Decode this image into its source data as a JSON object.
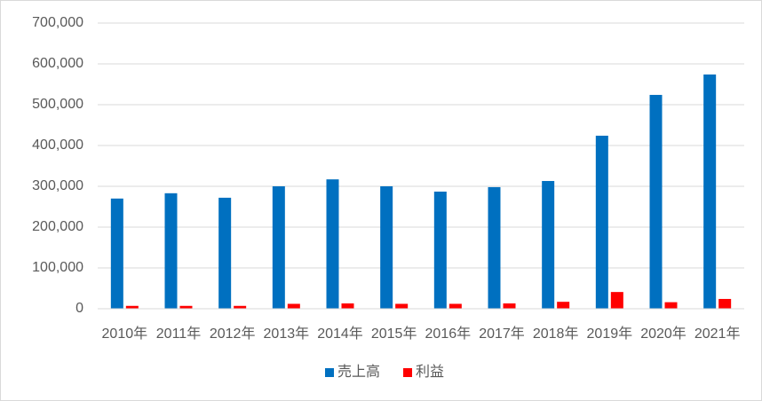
{
  "chart_data": {
    "type": "bar",
    "categories": [
      "2010年",
      "2011年",
      "2012年",
      "2013年",
      "2014年",
      "2015年",
      "2016年",
      "2017年",
      "2018年",
      "2019年",
      "2020年",
      "2021年"
    ],
    "series": [
      {
        "name": "売上高",
        "color": "#0070c0",
        "values": [
          270000,
          283000,
          272000,
          300000,
          317000,
          300000,
          287000,
          298000,
          313000,
          424000,
          524000,
          574000
        ]
      },
      {
        "name": "利益",
        "color": "#ff0000",
        "values": [
          7000,
          7000,
          7000,
          12000,
          13000,
          12000,
          12000,
          13000,
          17000,
          41000,
          16000,
          24000
        ]
      }
    ],
    "ylim": [
      0,
      700000
    ],
    "yticks": [
      0,
      {
        "value": 100000,
        "label": "100,000"
      },
      {
        "value": 200000,
        "label": "200,000"
      },
      {
        "value": 300000,
        "label": "300,000"
      },
      {
        "value": 400000,
        "label": "400,000"
      },
      {
        "value": 500000,
        "label": "500,000"
      },
      {
        "value": 600000,
        "label": "600,000"
      },
      {
        "value": 700000,
        "label": "700,000"
      }
    ],
    "grid": true,
    "legend": "bottom"
  }
}
